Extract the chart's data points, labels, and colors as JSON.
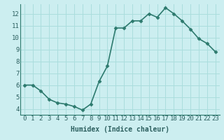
{
  "x": [
    0,
    1,
    2,
    3,
    4,
    5,
    6,
    7,
    8,
    9,
    10,
    11,
    12,
    13,
    14,
    15,
    16,
    17,
    18,
    19,
    20,
    21,
    22,
    23
  ],
  "y": [
    6.0,
    6.0,
    5.5,
    4.8,
    4.5,
    4.4,
    4.2,
    3.9,
    4.4,
    6.3,
    7.6,
    10.8,
    10.8,
    11.4,
    11.4,
    12.0,
    11.7,
    12.5,
    12.0,
    11.4,
    10.7,
    9.9,
    9.5,
    8.8
  ],
  "line_color": "#2d7a6e",
  "marker": "D",
  "marker_size": 2.5,
  "bg_color": "#cceef0",
  "grid_color": "#aadddd",
  "xlabel": "Humidex (Indice chaleur)",
  "ylim": [
    3.5,
    12.8
  ],
  "xlim": [
    -0.5,
    23.5
  ],
  "yticks": [
    4,
    5,
    6,
    7,
    8,
    9,
    10,
    11,
    12
  ],
  "xticks": [
    0,
    1,
    2,
    3,
    4,
    5,
    6,
    7,
    8,
    9,
    10,
    11,
    12,
    13,
    14,
    15,
    16,
    17,
    18,
    19,
    20,
    21,
    22,
    23
  ],
  "xlabel_fontsize": 7,
  "tick_fontsize": 6.5,
  "line_width": 1.2
}
